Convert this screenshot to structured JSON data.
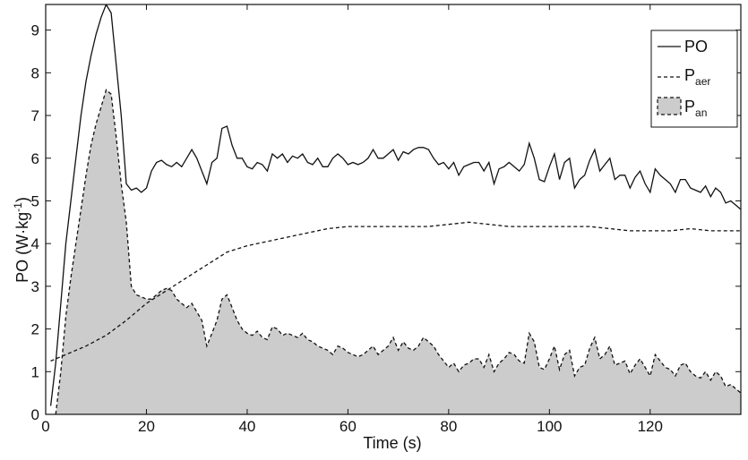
{
  "chart_data": {
    "type": "line",
    "title": "",
    "xlabel": "Time (s)",
    "ylabel_parts": [
      "PO (W·kg",
      "-1",
      ")"
    ],
    "xlim": [
      0,
      138
    ],
    "ylim": [
      0,
      9.6
    ],
    "x_ticks": [
      0,
      20,
      40,
      60,
      80,
      100,
      120
    ],
    "y_ticks": [
      0,
      1,
      2,
      3,
      4,
      5,
      6,
      7,
      8,
      9
    ],
    "grid": false,
    "legend_position": "top-right",
    "series": [
      {
        "name": "PO",
        "style": "solid",
        "x": [
          1,
          2,
          3,
          4,
          5,
          6,
          7,
          8,
          9,
          10,
          11,
          12,
          13,
          14,
          15,
          16,
          17,
          18,
          19,
          20,
          21,
          22,
          23,
          24,
          25,
          26,
          27,
          28,
          29,
          30,
          31,
          32,
          33,
          34,
          35,
          36,
          37,
          38,
          39,
          40,
          41,
          42,
          43,
          44,
          45,
          46,
          47,
          48,
          49,
          50,
          51,
          52,
          53,
          54,
          55,
          56,
          57,
          58,
          59,
          60,
          61,
          62,
          63,
          64,
          65,
          66,
          67,
          68,
          69,
          70,
          71,
          72,
          73,
          74,
          75,
          76,
          77,
          78,
          79,
          80,
          81,
          82,
          83,
          84,
          85,
          86,
          87,
          88,
          89,
          90,
          91,
          92,
          93,
          94,
          95,
          96,
          97,
          98,
          99,
          100,
          101,
          102,
          103,
          104,
          105,
          106,
          107,
          108,
          109,
          110,
          111,
          112,
          113,
          114,
          115,
          116,
          117,
          118,
          119,
          120,
          121,
          122,
          123,
          124,
          125,
          126,
          127,
          128,
          129,
          130,
          131,
          132,
          133,
          134,
          135,
          136,
          137,
          138
        ],
        "values": [
          0.2,
          1.2,
          2.6,
          4.0,
          5.0,
          6.0,
          7.0,
          7.8,
          8.4,
          8.9,
          9.3,
          9.6,
          9.4,
          8.2,
          7.0,
          5.4,
          5.25,
          5.3,
          5.2,
          5.3,
          5.7,
          5.9,
          5.95,
          5.85,
          5.8,
          5.9,
          5.8,
          6.0,
          6.2,
          6.0,
          5.7,
          5.4,
          5.9,
          6.0,
          6.7,
          6.75,
          6.3,
          6.0,
          6.0,
          5.8,
          5.75,
          5.9,
          5.85,
          5.7,
          6.1,
          6.0,
          6.1,
          5.9,
          6.05,
          6.0,
          6.1,
          5.9,
          5.85,
          6.0,
          5.8,
          5.8,
          6.0,
          6.1,
          6.0,
          5.85,
          5.9,
          5.85,
          5.9,
          6.0,
          6.2,
          6.0,
          6.0,
          6.1,
          6.2,
          5.95,
          6.15,
          6.1,
          6.2,
          6.25,
          6.25,
          6.2,
          6.0,
          5.85,
          5.9,
          5.75,
          5.9,
          5.6,
          5.8,
          5.85,
          5.9,
          5.9,
          5.7,
          5.9,
          5.4,
          5.75,
          5.8,
          5.9,
          5.8,
          5.7,
          5.85,
          6.35,
          6.0,
          5.5,
          5.45,
          5.8,
          6.1,
          5.5,
          5.9,
          6.0,
          5.3,
          5.5,
          5.6,
          5.95,
          6.2,
          5.7,
          5.85,
          6.0,
          5.5,
          5.6,
          5.6,
          5.3,
          5.55,
          5.7,
          5.4,
          5.2,
          5.75,
          5.6,
          5.5,
          5.4,
          5.2,
          5.5,
          5.5,
          5.3,
          5.25,
          5.2,
          5.35,
          5.1,
          5.3,
          5.2,
          4.95,
          5.0,
          4.9,
          4.8
        ]
      },
      {
        "name": "Paer",
        "name_parts": [
          "P",
          "aer"
        ],
        "style": "dashed",
        "x": [
          1,
          4,
          8,
          12,
          16,
          20,
          24,
          28,
          32,
          36,
          40,
          44,
          48,
          52,
          56,
          60,
          64,
          68,
          72,
          76,
          80,
          84,
          88,
          92,
          96,
          100,
          104,
          108,
          112,
          116,
          120,
          124,
          128,
          132,
          136,
          138
        ],
        "values": [
          1.25,
          1.4,
          1.6,
          1.85,
          2.2,
          2.6,
          2.9,
          3.2,
          3.5,
          3.8,
          3.95,
          4.05,
          4.15,
          4.25,
          4.35,
          4.4,
          4.4,
          4.4,
          4.4,
          4.4,
          4.45,
          4.5,
          4.45,
          4.4,
          4.4,
          4.4,
          4.4,
          4.4,
          4.35,
          4.3,
          4.3,
          4.3,
          4.35,
          4.3,
          4.3,
          4.3
        ]
      },
      {
        "name": "Pan",
        "name_parts": [
          "P",
          "an"
        ],
        "style": "filled-dashed",
        "fill_color": "#cccccc",
        "x": [
          2,
          3,
          4,
          5,
          6,
          7,
          8,
          9,
          10,
          11,
          12,
          13,
          14,
          15,
          16,
          17,
          18,
          19,
          20,
          21,
          22,
          23,
          24,
          25,
          26,
          27,
          28,
          29,
          30,
          31,
          32,
          33,
          34,
          35,
          36,
          37,
          38,
          39,
          40,
          41,
          42,
          43,
          44,
          45,
          46,
          47,
          48,
          49,
          50,
          51,
          52,
          53,
          54,
          55,
          56,
          57,
          58,
          59,
          60,
          61,
          62,
          63,
          64,
          65,
          66,
          67,
          68,
          69,
          70,
          71,
          72,
          73,
          74,
          75,
          76,
          77,
          78,
          79,
          80,
          81,
          82,
          83,
          84,
          85,
          86,
          87,
          88,
          89,
          90,
          91,
          92,
          93,
          94,
          95,
          96,
          97,
          98,
          99,
          100,
          101,
          102,
          103,
          104,
          105,
          106,
          107,
          108,
          109,
          110,
          111,
          112,
          113,
          114,
          115,
          116,
          117,
          118,
          119,
          120,
          121,
          122,
          123,
          124,
          125,
          126,
          127,
          128,
          129,
          130,
          131,
          132,
          133,
          134,
          135,
          136,
          137,
          138
        ],
        "values": [
          0.0,
          1.0,
          2.3,
          3.2,
          4.0,
          4.8,
          5.6,
          6.3,
          6.8,
          7.2,
          7.6,
          7.5,
          6.5,
          5.4,
          4.5,
          3.0,
          2.8,
          2.75,
          2.7,
          2.7,
          2.8,
          2.9,
          2.95,
          2.9,
          2.7,
          2.6,
          2.5,
          2.6,
          2.4,
          2.2,
          1.6,
          1.9,
          2.2,
          2.7,
          2.8,
          2.5,
          2.2,
          2.0,
          1.9,
          1.85,
          1.95,
          1.8,
          1.75,
          2.05,
          2.0,
          1.85,
          1.9,
          1.85,
          1.8,
          1.9,
          1.75,
          1.7,
          1.6,
          1.55,
          1.5,
          1.4,
          1.6,
          1.55,
          1.45,
          1.4,
          1.35,
          1.4,
          1.5,
          1.6,
          1.4,
          1.5,
          1.6,
          1.8,
          1.5,
          1.7,
          1.55,
          1.5,
          1.6,
          1.8,
          1.7,
          1.6,
          1.4,
          1.25,
          1.1,
          1.2,
          1.0,
          1.15,
          1.2,
          1.3,
          1.3,
          1.1,
          1.4,
          1.0,
          1.2,
          1.3,
          1.45,
          1.4,
          1.25,
          1.2,
          1.9,
          1.7,
          1.1,
          1.05,
          1.3,
          1.6,
          1.05,
          1.4,
          1.5,
          0.9,
          1.1,
          1.15,
          1.55,
          1.8,
          1.3,
          1.4,
          1.6,
          1.15,
          1.2,
          1.25,
          0.95,
          1.15,
          1.3,
          1.1,
          0.9,
          1.4,
          1.25,
          1.1,
          1.05,
          0.9,
          1.15,
          1.2,
          1.0,
          0.9,
          0.85,
          1.0,
          0.8,
          1.0,
          0.9,
          0.65,
          0.7,
          0.6,
          0.5
        ]
      }
    ]
  }
}
